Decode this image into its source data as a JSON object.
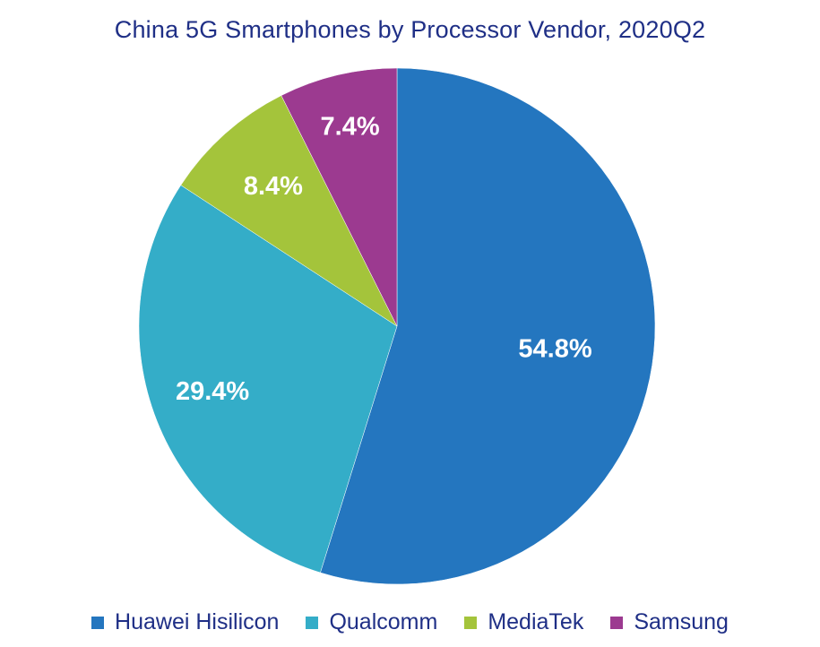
{
  "chart_data": {
    "type": "pie",
    "title": "China 5G Smartphones by Processor Vendor, 2020Q2",
    "slices": [
      {
        "name": "Huawei Hisilicon",
        "value": 54.8,
        "label": "54.8%",
        "color": "#2476bf"
      },
      {
        "name": "Qualcomm",
        "value": 29.4,
        "label": "29.4%",
        "color": "#34adc8"
      },
      {
        "name": "MediaTek",
        "value": 8.4,
        "label": "8.4%",
        "color": "#a4c43b"
      },
      {
        "name": "Samsung",
        "value": 7.4,
        "label": "7.4%",
        "color": "#9c3a90"
      }
    ],
    "legend_position": "bottom"
  }
}
